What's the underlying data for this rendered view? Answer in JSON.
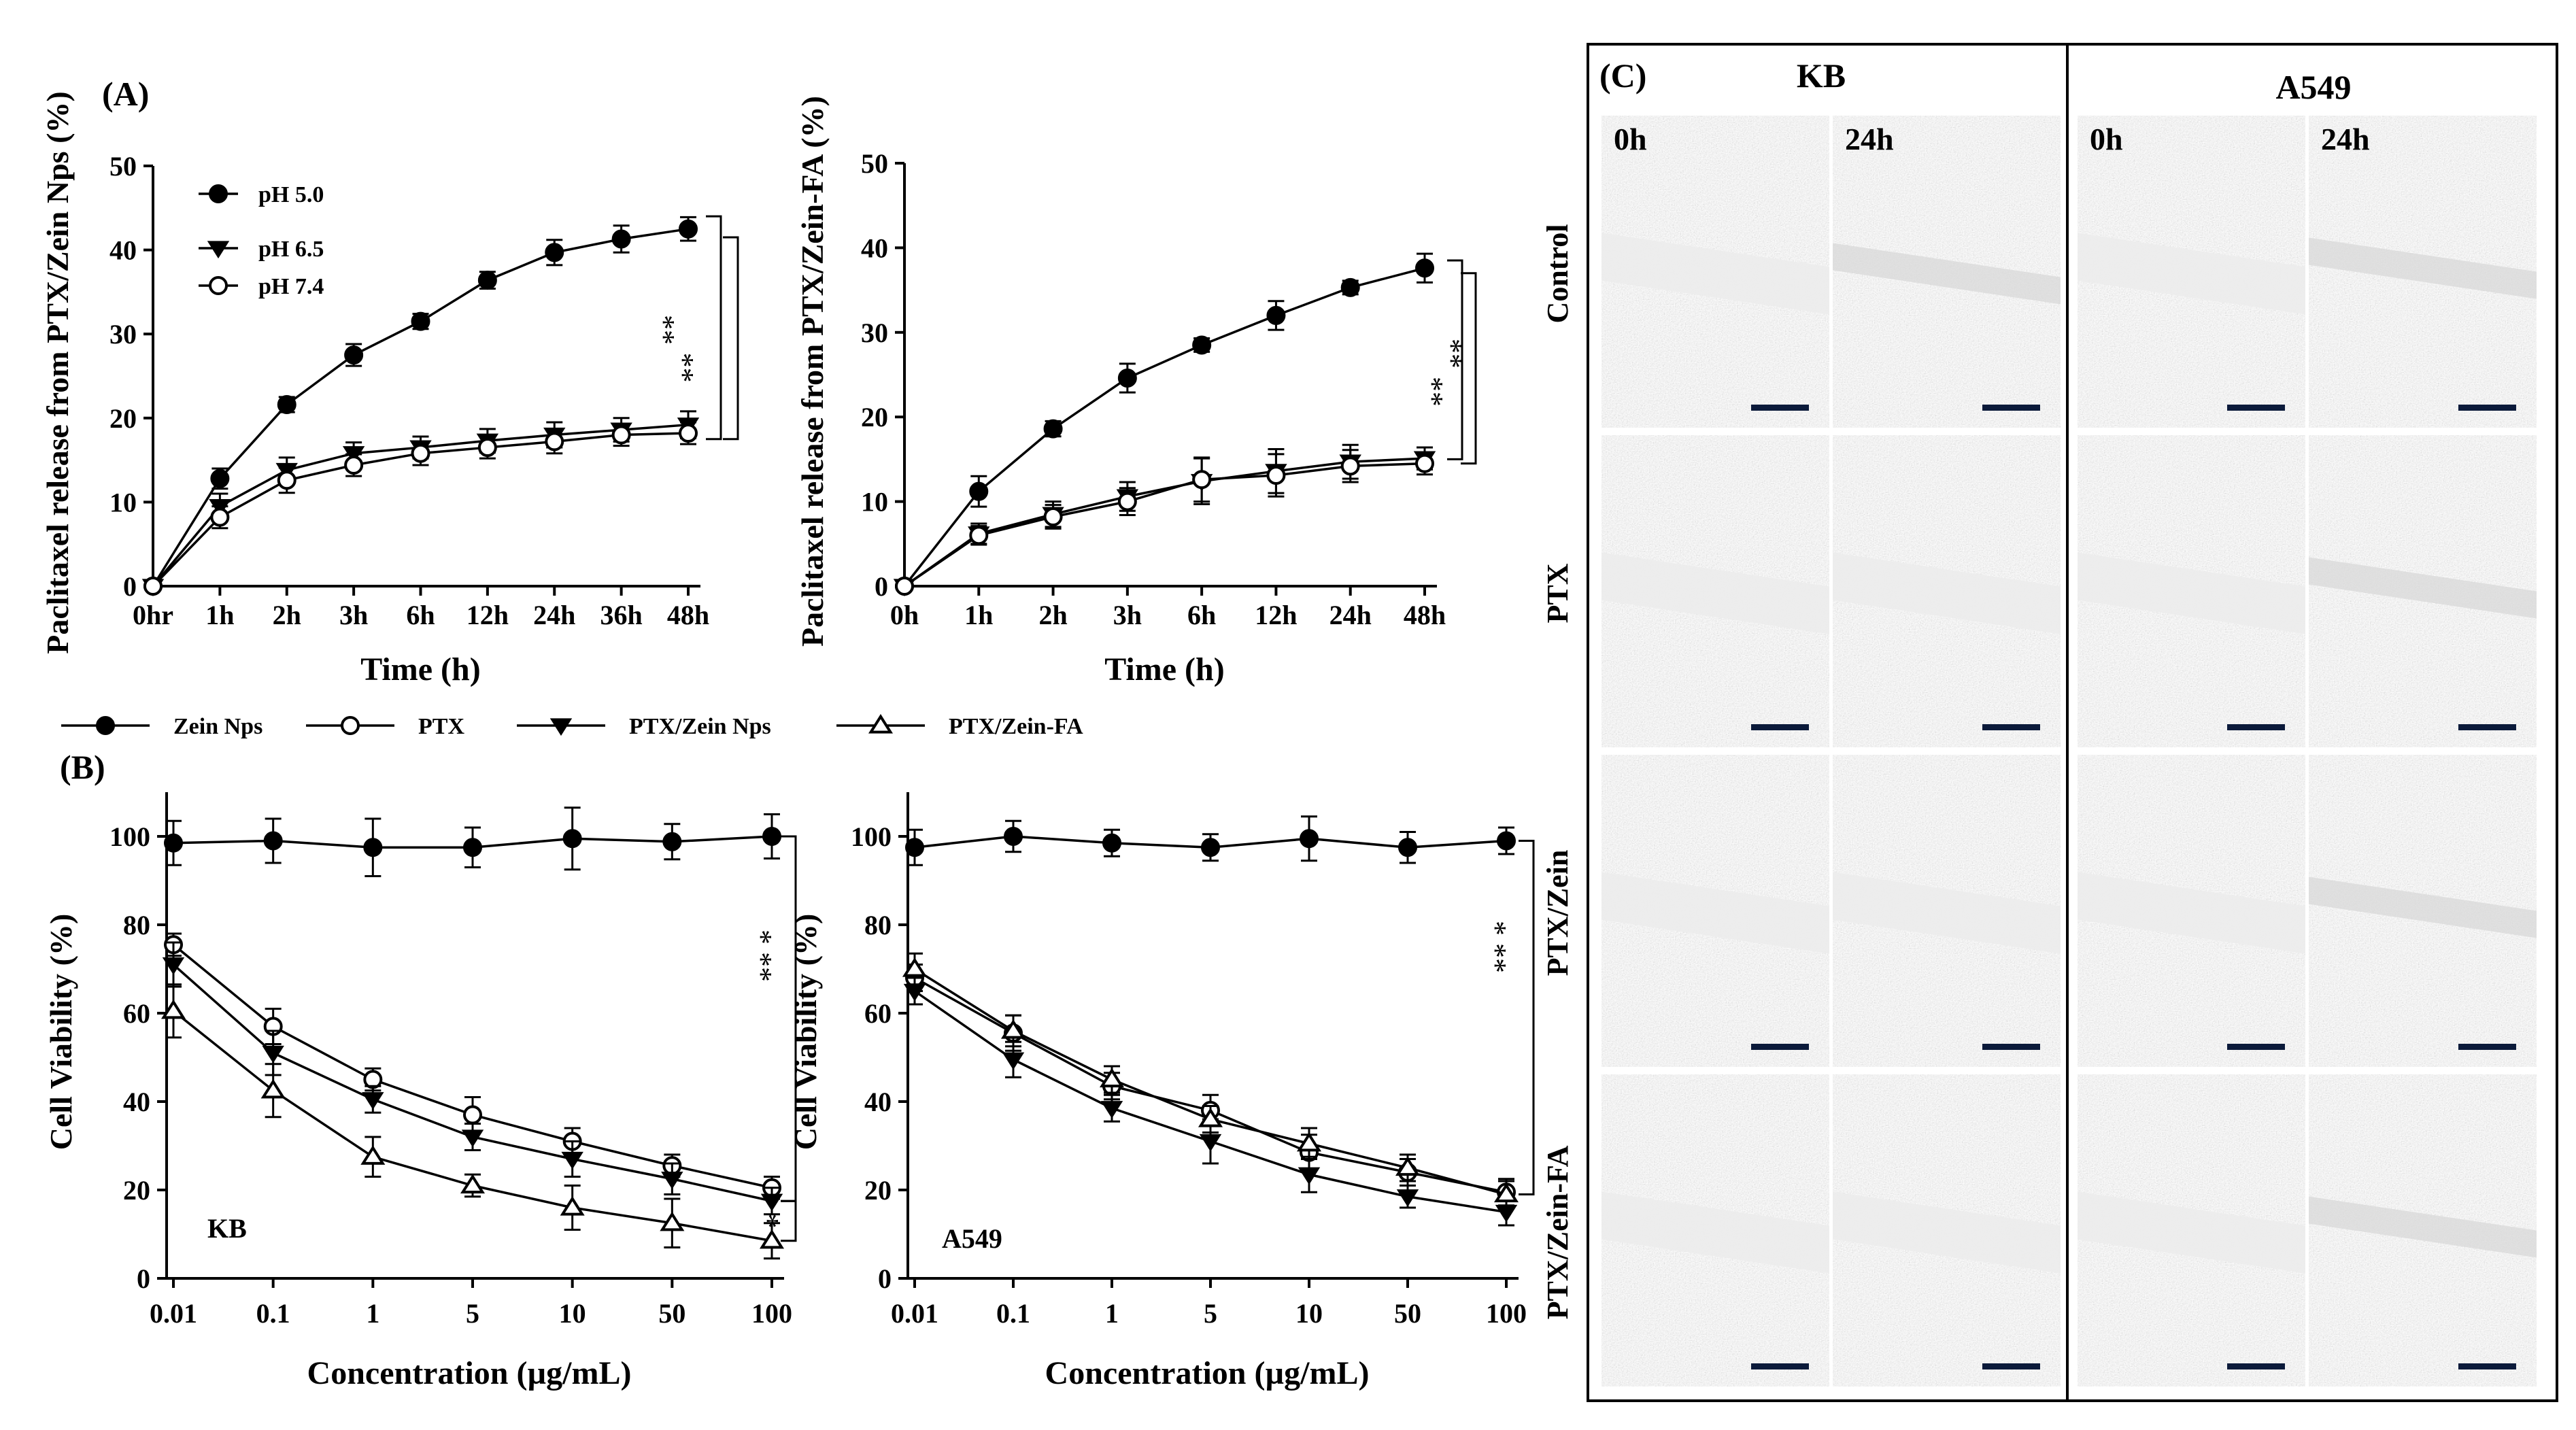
{
  "panel_labels": {
    "a": "(A)",
    "b": "(B)",
    "c": "(C)"
  },
  "significance": {
    "double": "**",
    "single": "*",
    "triple": "* **"
  },
  "chart_data": [
    {
      "id": "a1",
      "type": "line",
      "ylabel": "Paclitaxel release from PTX/Zein Nps (%)",
      "xlabel": "Time (h)",
      "categories": [
        "0hr",
        "1h",
        "2h",
        "3h",
        "6h",
        "12h",
        "24h",
        "36h",
        "48h"
      ],
      "ylim": [
        0,
        50
      ],
      "yticks": [
        "0",
        "10",
        "20",
        "30",
        "40",
        "50"
      ],
      "legend_position": "top-left",
      "series": [
        {
          "name": "pH 5.0",
          "marker": "circle-filled",
          "values": [
            0,
            12.8,
            21.6,
            27.5,
            31.5,
            36.4,
            39.7,
            41.3,
            42.5
          ],
          "errors": [
            0,
            1.2,
            0.9,
            1.3,
            0.9,
            1.0,
            1.5,
            1.6,
            1.4
          ]
        },
        {
          "name": "pH 6.5",
          "marker": "triangle-down-filled",
          "values": [
            0,
            9.5,
            13.8,
            15.8,
            16.5,
            17.3,
            18.0,
            18.6,
            19.2
          ],
          "errors": [
            0,
            1.5,
            1.5,
            1.3,
            1.3,
            1.4,
            1.5,
            1.4,
            1.6
          ]
        },
        {
          "name": "pH 7.4",
          "marker": "circle-open",
          "values": [
            0,
            8.2,
            12.6,
            14.4,
            15.8,
            16.5,
            17.2,
            18.0,
            18.2
          ],
          "errors": [
            0,
            1.3,
            1.5,
            1.3,
            1.4,
            1.3,
            1.4,
            1.3,
            1.3
          ]
        }
      ]
    },
    {
      "id": "a2",
      "type": "line",
      "ylabel": "Paclitaxel release from PTX/Zein-FA (%)",
      "xlabel": "Time (h)",
      "categories": [
        "0h",
        "1h",
        "2h",
        "3h",
        "6h",
        "12h",
        "24h",
        "48h"
      ],
      "ylim": [
        0,
        50
      ],
      "yticks": [
        "0",
        "10",
        "20",
        "30",
        "40",
        "50"
      ],
      "series": [
        {
          "name": "pH 5.0",
          "marker": "circle-filled",
          "values": [
            0,
            11.2,
            18.6,
            24.6,
            28.5,
            32.0,
            35.3,
            37.6
          ],
          "errors": [
            0,
            1.8,
            0.9,
            1.7,
            0.8,
            1.7,
            0.8,
            1.7
          ]
        },
        {
          "name": "pH 6.5",
          "marker": "triangle-down-filled",
          "values": [
            0,
            6.2,
            8.5,
            10.6,
            12.4,
            13.6,
            14.7,
            15.1
          ],
          "errors": [
            0,
            1.2,
            1.5,
            1.7,
            2.7,
            2.6,
            2.0,
            1.3
          ]
        },
        {
          "name": "pH 7.4",
          "marker": "circle-open",
          "values": [
            0,
            6.0,
            8.2,
            10.0,
            12.6,
            13.1,
            14.2,
            14.5
          ],
          "errors": [
            0,
            1.1,
            1.4,
            1.6,
            2.6,
            2.5,
            1.9,
            1.3
          ]
        }
      ]
    },
    {
      "id": "b1",
      "type": "line",
      "ylabel": "Cell Viability (%)",
      "xlabel": "Concentration (µg/mL)",
      "annotation": "KB",
      "categories": [
        "0.01",
        "0.1",
        "1",
        "5",
        "10",
        "50",
        "100"
      ],
      "ylim": [
        0,
        110
      ],
      "yticks": [
        "0",
        "20",
        "40",
        "60",
        "80",
        "100"
      ],
      "legend_position": "top",
      "series": [
        {
          "name": "Zein Nps",
          "marker": "circle-filled",
          "values": [
            98.5,
            99.0,
            97.5,
            97.5,
            99.5,
            98.8,
            100.0
          ],
          "errors": [
            5.0,
            5.0,
            6.5,
            4.5,
            7.0,
            4.0,
            5.0
          ]
        },
        {
          "name": "PTX",
          "marker": "circle-open",
          "values": [
            75.5,
            57.0,
            45.0,
            37.0,
            31.0,
            25.5,
            20.5
          ],
          "errors": [
            2.5,
            4.0,
            2.5,
            4.0,
            3.0,
            2.5,
            2.5
          ]
        },
        {
          "name": "PTX/Zein Nps",
          "marker": "triangle-down-filled",
          "values": [
            71.0,
            51.0,
            40.5,
            32.0,
            27.0,
            22.5,
            17.5
          ],
          "errors": [
            5.0,
            5.0,
            3.0,
            3.0,
            4.0,
            3.5,
            3.0
          ]
        },
        {
          "name": "PTX/Zein-FA",
          "marker": "triangle-up-open",
          "values": [
            60.5,
            42.5,
            27.5,
            21.0,
            16.0,
            12.5,
            8.5
          ],
          "errors": [
            6.0,
            6.0,
            4.5,
            2.5,
            5.0,
            5.5,
            4.0
          ]
        }
      ]
    },
    {
      "id": "b2",
      "type": "line",
      "ylabel": "Cell Viability (%)",
      "xlabel": "Concentration (µg/mL)",
      "annotation": "A549",
      "categories": [
        "0.01",
        "0.1",
        "1",
        "5",
        "10",
        "50",
        "100"
      ],
      "ylim": [
        0,
        110
      ],
      "yticks": [
        "0",
        "20",
        "40",
        "60",
        "80",
        "100"
      ],
      "series": [
        {
          "name": "Zein Nps",
          "marker": "circle-filled",
          "values": [
            97.5,
            100.0,
            98.5,
            97.5,
            99.5,
            97.5,
            99.0
          ],
          "errors": [
            4.0,
            3.5,
            3.0,
            3.0,
            5.0,
            3.5,
            3.0
          ]
        },
        {
          "name": "PTX",
          "marker": "circle-open",
          "values": [
            68.0,
            55.5,
            43.5,
            38.0,
            28.5,
            24.0,
            19.5
          ],
          "errors": [
            3.0,
            4.0,
            3.0,
            3.5,
            4.0,
            3.0,
            3.0
          ]
        },
        {
          "name": "PTX/Zein Nps",
          "marker": "triangle-down-filled",
          "values": [
            65.0,
            49.5,
            38.5,
            31.0,
            23.5,
            18.5,
            15.0
          ],
          "errors": [
            3.0,
            4.0,
            3.0,
            5.0,
            4.0,
            2.5,
            3.0
          ]
        },
        {
          "name": "PTX/Zein-FA",
          "marker": "triangle-up-open",
          "values": [
            70.0,
            56.0,
            45.0,
            36.0,
            30.5,
            25.0,
            19.0
          ],
          "errors": [
            3.5,
            3.5,
            3.0,
            3.0,
            3.5,
            3.0,
            3.0
          ]
        }
      ]
    }
  ],
  "migration": {
    "cell_lines": [
      "KB",
      "A549"
    ],
    "timepoints": [
      "0h",
      "24h"
    ],
    "treatments": [
      "Control",
      "PTX",
      "PTX/Zein",
      "PTX/Zein-FA"
    ]
  }
}
